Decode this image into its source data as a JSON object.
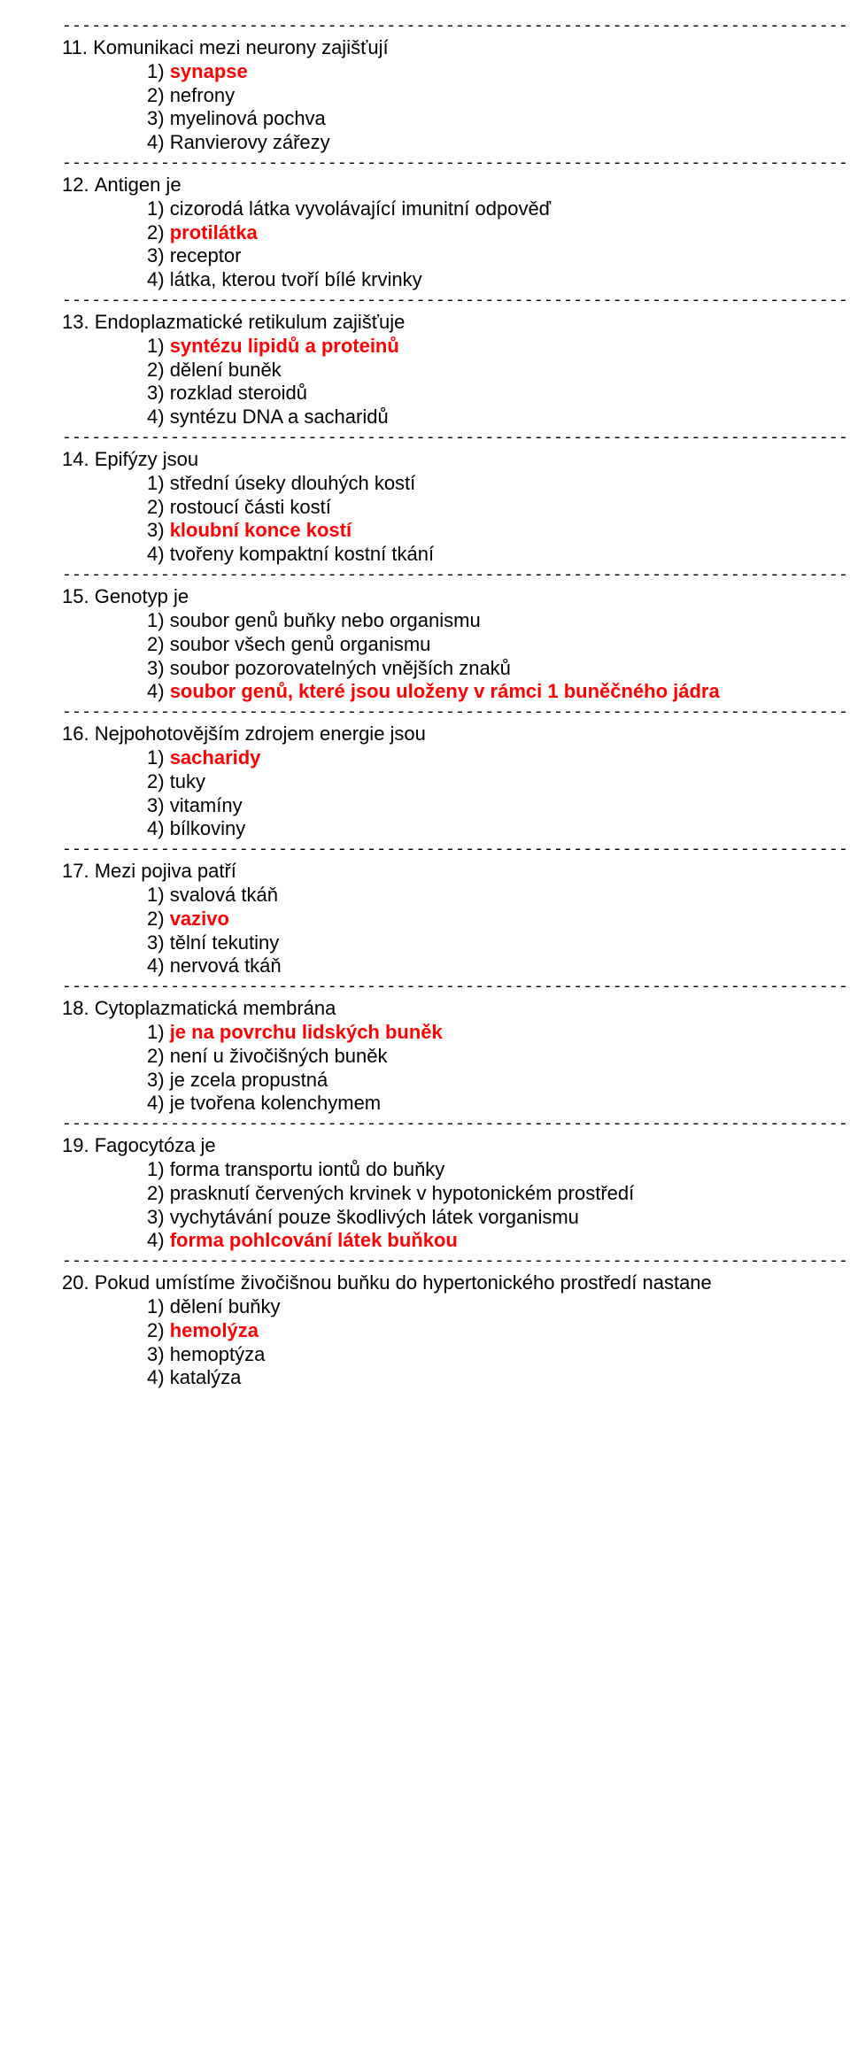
{
  "divider": "---------------------------------------------------------------------------------------",
  "questions": [
    {
      "number": "11. ",
      "text": "Komunikaci mezi neurony zajišťují",
      "optionsIndent": 96,
      "options": [
        {
          "num": "1) ",
          "text": "synapse",
          "correct": true
        },
        {
          "num": "2) ",
          "text": "nefrony",
          "correct": false
        },
        {
          "num": "3) ",
          "text": "myelinová pochva",
          "correct": false
        },
        {
          "num": "4) ",
          "text": "Ranvierovy zářezy",
          "correct": false
        }
      ]
    },
    {
      "number": "12. ",
      "text": "Antigen je",
      "optionsIndent": 96,
      "options": [
        {
          "num": "1) ",
          "text": "cizorodá látka vyvolávající imunitní odpověď",
          "correct": false
        },
        {
          "num": "2) ",
          "text": "protilátka",
          "correct": true
        },
        {
          "num": "3) ",
          "text": "receptor",
          "correct": false
        },
        {
          "num": "4) ",
          "text": "látka, kterou tvoří bílé krvinky",
          "correct": false
        }
      ]
    },
    {
      "number": "13. ",
      "text": "Endoplazmatické retikulum zajišťuje",
      "optionsIndent": 96,
      "options": [
        {
          "num": "1) ",
          "text": "syntézu lipidů a proteinů",
          "correct": true
        },
        {
          "num": "2) ",
          "text": "dělení buněk",
          "correct": false
        },
        {
          "num": "3) ",
          "text": "rozklad steroidů",
          "correct": false
        },
        {
          "num": "4) ",
          "text": "syntézu DNA a sacharidů",
          "correct": false
        }
      ]
    },
    {
      "number": "14. ",
      "text": "Epifýzy jsou",
      "optionsIndent": 96,
      "options": [
        {
          "num": "1) ",
          "text": "střední úseky dlouhých kostí",
          "correct": false
        },
        {
          "num": "2) ",
          "text": "rostoucí části kostí",
          "correct": false
        },
        {
          "num": "3) ",
          "text": "kloubní konce kostí",
          "correct": true
        },
        {
          "num": "4) ",
          "text": "tvořeny kompaktní kostní tkání",
          "correct": false
        }
      ]
    },
    {
      "number": "15. ",
      "text": "Genotyp je",
      "optionsIndent": 96,
      "options": [
        {
          "num": "1) ",
          "text": "soubor genů buňky nebo organismu",
          "correct": false
        },
        {
          "num": "2) ",
          "text": "soubor všech genů organismu",
          "correct": false
        },
        {
          "num": "3) ",
          "text": "soubor pozorovatelných vnějších znaků",
          "correct": false
        },
        {
          "num": "4) ",
          "text": "soubor genů, které jsou uloženy v rámci 1 buněčného jádra",
          "correct": true
        }
      ]
    },
    {
      "number": "16. ",
      "text": "Nejpohotovějším zdrojem energie jsou",
      "optionsIndent": 96,
      "options": [
        {
          "num": "1) ",
          "text": "sacharidy",
          "correct": true
        },
        {
          "num": "2) ",
          "text": "tuky",
          "correct": false
        },
        {
          "num": "3) ",
          "text": "vitamíny",
          "correct": false
        },
        {
          "num": "4) ",
          "text": "bílkoviny",
          "correct": false
        }
      ]
    },
    {
      "number": "17. ",
      "text": "Mezi pojiva patří",
      "optionsIndent": 96,
      "options": [
        {
          "num": "1) ",
          "text": "svalová tkáň",
          "correct": false
        },
        {
          "num": "2) ",
          "text": "vazivo",
          "correct": true
        },
        {
          "num": "3) ",
          "text": "tělní tekutiny",
          "correct": false
        },
        {
          "num": "4) ",
          "text": "nervová tkáň",
          "correct": false
        }
      ]
    },
    {
      "number": "18. ",
      "text": "Cytoplazmatická membrána",
      "optionsIndent": 96,
      "options": [
        {
          "num": "1) ",
          "text": "je na povrchu lidských buněk",
          "correct": true
        },
        {
          "num": "2) ",
          "text": "není u živočišných buněk",
          "correct": false
        },
        {
          "num": "3) ",
          "text": "je zcela propustná",
          "correct": false
        },
        {
          "num": "4) ",
          "text": "je tvořena kolenchymem",
          "correct": false
        }
      ]
    },
    {
      "number": "19. ",
      "text": "Fagocytóza je",
      "optionsIndent": 96,
      "options": [
        {
          "num": "1) ",
          "text": "forma transportu iontů do buňky",
          "correct": false
        },
        {
          "num": "2) ",
          "text": "prasknutí červených krvinek v hypotonickém prostředí",
          "correct": false
        },
        {
          "num": "3) ",
          "text": "vychytávání pouze škodlivých látek vorganismu",
          "correct": false
        },
        {
          "num": "4) ",
          "text": "forma pohlcování látek buňkou",
          "correct": true
        }
      ]
    },
    {
      "number": "20. ",
      "text": "Pokud umístíme živočišnou buňku do hypertonického prostředí nastane",
      "optionsIndent": 96,
      "options": [
        {
          "num": "1) ",
          "text": "dělení buňky",
          "correct": false
        },
        {
          "num": "2) ",
          "text": "hemolýza",
          "correct": true
        },
        {
          "num": "3) ",
          "text": "hemoptýza",
          "correct": false
        },
        {
          "num": "4) ",
          "text": "katalýza",
          "correct": false
        }
      ]
    }
  ]
}
